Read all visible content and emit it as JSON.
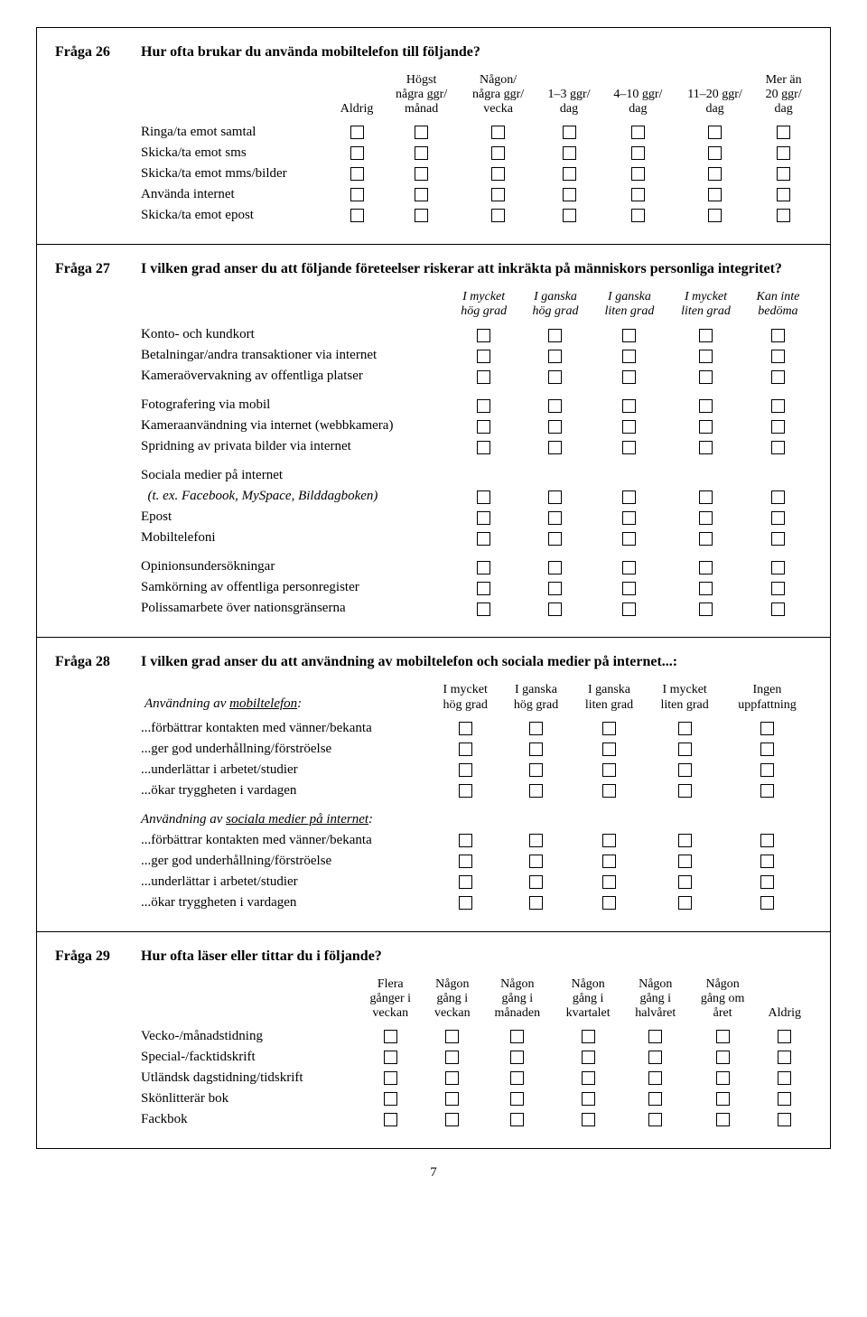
{
  "page_number": "7",
  "q26": {
    "num": "Fråga 26",
    "title": "Hur ofta brukar du använda mobiltelefon till följande?",
    "cols": [
      "Aldrig",
      "Högst\nnågra ggr/\nmånad",
      "Någon/\nnågra ggr/\nvecka",
      "1–3 ggr/\ndag",
      "4–10 ggr/\ndag",
      "11–20 ggr/\ndag",
      "Mer än\n20 ggr/\ndag"
    ],
    "rows": [
      "Ringa/ta emot samtal",
      "Skicka/ta emot sms",
      "Skicka/ta emot mms/bilder",
      "Använda internet",
      "Skicka/ta emot epost"
    ]
  },
  "q27": {
    "num": "Fråga 27",
    "title": "I vilken grad anser du att följande företeelser riskerar att inkräkta på människors personliga integritet?",
    "cols": [
      "I mycket\nhög grad",
      "I ganska\nhög grad",
      "I ganska\nliten grad",
      "I mycket\nliten grad",
      "Kan inte\nbedöma"
    ],
    "group1": [
      "Konto- och kundkort",
      "Betalningar/andra transaktioner via internet",
      "Kameraövervakning av offentliga platser"
    ],
    "group2": [
      "Fotografering via mobil",
      "Kameraanvändning via internet (webbkamera)",
      "Spridning av privata bilder via internet"
    ],
    "group3_head": "Sociala medier på internet",
    "group3_ex": "(t. ex. Facebook, MySpace, Bilddagboken)",
    "group3_rest": [
      "Epost",
      "Mobiltelefoni"
    ],
    "group4": [
      "Opinionsundersökningar",
      "Samkörning av offentliga personregister",
      "Polissamarbete över nationsgränserna"
    ]
  },
  "q28": {
    "num": "Fråga 28",
    "title": "I vilken grad anser du att användning av mobiltelefon och sociala medier på internet...:",
    "cols": [
      "I mycket\nhög grad",
      "I ganska\nhög grad",
      "I ganska\nliten grad",
      "I mycket\nliten grad",
      "Ingen\nuppfattning"
    ],
    "sub1_pre": "Användning av ",
    "sub1_u": "mobiltelefon",
    "sub1_post": ":",
    "sub2_pre": "Användning av ",
    "sub2_u": "sociala medier på internet",
    "sub2_post": ":",
    "rows": [
      "...förbättrar kontakten med vänner/bekanta",
      "...ger god underhållning/förströelse",
      "...underlättar i arbetet/studier",
      "...ökar tryggheten i vardagen"
    ]
  },
  "q29": {
    "num": "Fråga 29",
    "title": "Hur ofta läser eller tittar du i följande?",
    "cols": [
      "Flera\ngånger i\nveckan",
      "Någon\ngång i\nveckan",
      "Någon\ngång i\nmånaden",
      "Någon\ngång i\nkvartalet",
      "Någon\ngång i\nhalvåret",
      "Någon\ngång om\nåret",
      "Aldrig"
    ],
    "rows": [
      "Vecko-/månadstidning",
      "Special-/facktidskrift",
      "Utländsk dagstidning/tidskrift",
      "Skönlitterär bok",
      "Fackbok"
    ]
  }
}
